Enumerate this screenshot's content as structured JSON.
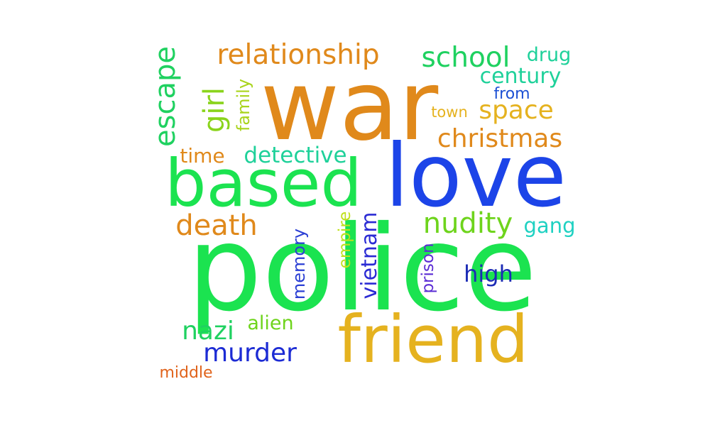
{
  "words": [
    {
      "text": "police",
      "color": "#1be350"
    },
    {
      "text": "war",
      "color": "#e0891b"
    },
    {
      "text": "love",
      "color": "#1c44e8"
    },
    {
      "text": "based",
      "color": "#1be350"
    },
    {
      "text": "friend",
      "color": "#e5b21f"
    },
    {
      "text": "relationship",
      "color": "#e0891b"
    },
    {
      "text": "school",
      "color": "#1fd160"
    },
    {
      "text": "escape",
      "color": "#1fd160"
    },
    {
      "text": "girl",
      "color": "#8ad41c"
    },
    {
      "text": "family",
      "color": "#a9d41c"
    },
    {
      "text": "drug",
      "color": "#1fd19a"
    },
    {
      "text": "century",
      "color": "#1fd19a"
    },
    {
      "text": "from",
      "color": "#1c50d4"
    },
    {
      "text": "space",
      "color": "#e5b21f"
    },
    {
      "text": "town",
      "color": "#e5b21f"
    },
    {
      "text": "christmas",
      "color": "#e0891b"
    },
    {
      "text": "time",
      "color": "#e0891b"
    },
    {
      "text": "detective",
      "color": "#1fd19a"
    },
    {
      "text": "death",
      "color": "#e0891b"
    },
    {
      "text": "nudity",
      "color": "#6ed41c"
    },
    {
      "text": "gang",
      "color": "#1fd1c2"
    },
    {
      "text": "empire",
      "color": "#bfe01c"
    },
    {
      "text": "vietnam",
      "color": "#2b2bd4"
    },
    {
      "text": "memory",
      "color": "#2b3fd4"
    },
    {
      "text": "prison",
      "color": "#5a2bd4"
    },
    {
      "text": "high",
      "color": "#1c2bb5"
    },
    {
      "text": "nazi",
      "color": "#1fd160"
    },
    {
      "text": "alien",
      "color": "#6ed41c"
    },
    {
      "text": "murder",
      "color": "#1c2bd4"
    },
    {
      "text": "middle",
      "color": "#e0631b"
    }
  ]
}
